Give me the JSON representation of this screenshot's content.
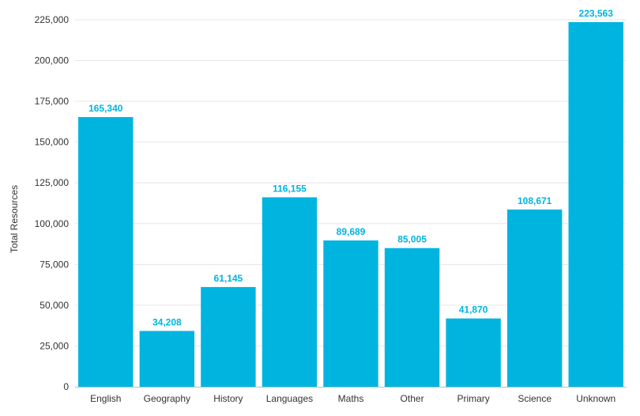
{
  "chart_data": {
    "type": "bar",
    "title": "",
    "xlabel": "",
    "ylabel": "Total Resources",
    "ylim": [
      0,
      225000
    ],
    "yticks": [
      0,
      25000,
      50000,
      75000,
      100000,
      125000,
      150000,
      175000,
      200000,
      225000
    ],
    "ytick_labels": [
      "0",
      "25,000",
      "50,000",
      "75,000",
      "100,000",
      "125,000",
      "150,000",
      "175,000",
      "200,000",
      "225,000"
    ],
    "grid": true,
    "bar_color": "#00b4e0",
    "label_color": "#00b4e0",
    "categories": [
      "English",
      "Geography",
      "History",
      "Languages",
      "Maths",
      "Other",
      "Primary",
      "Science",
      "Unknown"
    ],
    "values": [
      165340,
      34208,
      61145,
      116155,
      89689,
      85005,
      41870,
      108671,
      223563
    ],
    "value_labels": [
      "165,340",
      "34,208",
      "61,145",
      "116,155",
      "89,689",
      "85,005",
      "41,870",
      "108,671",
      "223,563"
    ]
  }
}
